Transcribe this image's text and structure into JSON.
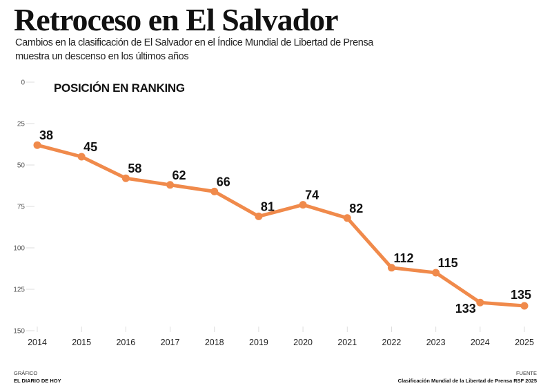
{
  "header": {
    "title": "Retroceso en El Salvador",
    "subtitle": "Cambios en la clasificación de El Salvador en el Índice Mundial de Libertad de Prensa muestra un descenso en los últimos años"
  },
  "footer": {
    "credit_label": "GRÁFICO",
    "credit_value": "EL DIARIO DE HOY",
    "source_label": "FUENTE",
    "source_value": "Clasificación Mundial de la Libertad de Prensa RSF 2025"
  },
  "colors": {
    "line": "#F08A4B",
    "grid": "#dddddd"
  },
  "chart_data": {
    "type": "line",
    "title": "POSICIÓN EN RANKING",
    "xlabel": "",
    "ylabel": "",
    "categories": [
      "2014",
      "2015",
      "2016",
      "2017",
      "2018",
      "2019",
      "2020",
      "2021",
      "2022",
      "2023",
      "2024",
      "2025"
    ],
    "series": [
      {
        "name": "POSICIÓN EN RANKING",
        "values": [
          38,
          45,
          58,
          62,
          66,
          81,
          74,
          82,
          112,
          115,
          133,
          135
        ]
      }
    ],
    "y_ticks": [
      0,
      25,
      50,
      75,
      100,
      125,
      150
    ],
    "y_tick_labels": [
      "0",
      "25",
      "50",
      "75",
      "100",
      "125",
      "150"
    ],
    "ylim": [
      0,
      150
    ],
    "y_inverted": true,
    "grid": false
  }
}
